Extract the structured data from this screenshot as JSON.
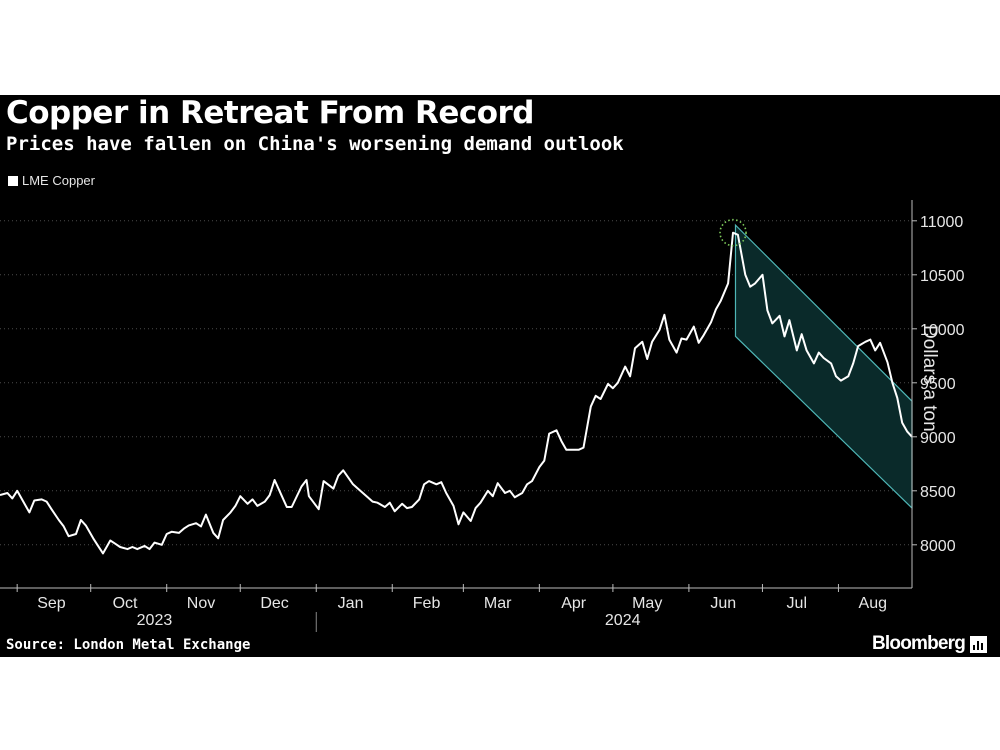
{
  "header": {
    "title": "Copper in Retreat From Record",
    "subtitle": "Prices have fallen on China's worsening demand outlook"
  },
  "legend": {
    "label": "LME Copper"
  },
  "footer": {
    "source": "Source: London Metal Exchange",
    "brand": "Bloomberg"
  },
  "colors": {
    "background": "#000000",
    "line": "#ffffff",
    "channel_fill": "#0a2a2a",
    "channel_border": "#4fb6b6",
    "peak_marker": "#7ecb5b"
  },
  "chart_data": {
    "type": "line",
    "title": "Copper in Retreat From Record",
    "subtitle": "Prices have fallen on China's worsening demand outlook",
    "ylabel": "Dollars a ton",
    "ylim": [
      7600,
      11100
    ],
    "yticks": [
      8000,
      8500,
      9000,
      9500,
      10000,
      10500,
      11000
    ],
    "xlim": [
      "2023-08-25",
      "2024-08-31"
    ],
    "month_ticks": [
      {
        "label": "Sep",
        "date": "2023-09-15"
      },
      {
        "label": "Oct",
        "date": "2023-10-15"
      },
      {
        "label": "Nov",
        "date": "2023-11-15"
      },
      {
        "label": "Dec",
        "date": "2023-12-15"
      },
      {
        "label": "Jan",
        "date": "2024-01-15"
      },
      {
        "label": "Feb",
        "date": "2024-02-15"
      },
      {
        "label": "Mar",
        "date": "2024-03-15"
      },
      {
        "label": "Apr",
        "date": "2024-04-15"
      },
      {
        "label": "May",
        "date": "2024-05-15"
      },
      {
        "label": "Jun",
        "date": "2024-06-15"
      },
      {
        "label": "Jul",
        "date": "2024-07-15"
      },
      {
        "label": "Aug",
        "date": "2024-08-15"
      }
    ],
    "month_boundaries": [
      "2023-09-01",
      "2023-10-01",
      "2023-11-01",
      "2023-12-01",
      "2024-01-01",
      "2024-02-01",
      "2024-03-01",
      "2024-04-01",
      "2024-05-01",
      "2024-06-01",
      "2024-07-01",
      "2024-08-01",
      "2024-09-01"
    ],
    "year_labels": [
      {
        "label": "2023",
        "date": "2023-10-27"
      },
      {
        "label": "2024",
        "date": "2024-05-05"
      }
    ],
    "year_divider": "2024-01-01",
    "grid": true,
    "legend_position": "top-left",
    "series": [
      {
        "name": "LME Copper",
        "points": [
          [
            "2023-08-25",
            8460
          ],
          [
            "2023-08-28",
            8480
          ],
          [
            "2023-08-30",
            8430
          ],
          [
            "2023-09-01",
            8500
          ],
          [
            "2023-09-04",
            8380
          ],
          [
            "2023-09-06",
            8300
          ],
          [
            "2023-09-08",
            8410
          ],
          [
            "2023-09-11",
            8420
          ],
          [
            "2023-09-13",
            8400
          ],
          [
            "2023-09-15",
            8330
          ],
          [
            "2023-09-18",
            8230
          ],
          [
            "2023-09-20",
            8170
          ],
          [
            "2023-09-22",
            8080
          ],
          [
            "2023-09-25",
            8100
          ],
          [
            "2023-09-27",
            8230
          ],
          [
            "2023-09-29",
            8180
          ],
          [
            "2023-10-02",
            8060
          ],
          [
            "2023-10-04",
            7990
          ],
          [
            "2023-10-06",
            7920
          ],
          [
            "2023-10-09",
            8040
          ],
          [
            "2023-10-11",
            8010
          ],
          [
            "2023-10-13",
            7980
          ],
          [
            "2023-10-16",
            7960
          ],
          [
            "2023-10-18",
            7980
          ],
          [
            "2023-10-20",
            7960
          ],
          [
            "2023-10-23",
            7990
          ],
          [
            "2023-10-25",
            7960
          ],
          [
            "2023-10-27",
            8020
          ],
          [
            "2023-10-30",
            8000
          ],
          [
            "2023-11-01",
            8100
          ],
          [
            "2023-11-03",
            8120
          ],
          [
            "2023-11-06",
            8110
          ],
          [
            "2023-11-08",
            8150
          ],
          [
            "2023-11-10",
            8180
          ],
          [
            "2023-11-13",
            8200
          ],
          [
            "2023-11-15",
            8170
          ],
          [
            "2023-11-17",
            8280
          ],
          [
            "2023-11-20",
            8110
          ],
          [
            "2023-11-22",
            8060
          ],
          [
            "2023-11-24",
            8230
          ],
          [
            "2023-11-27",
            8300
          ],
          [
            "2023-11-29",
            8360
          ],
          [
            "2023-12-01",
            8450
          ],
          [
            "2023-12-04",
            8380
          ],
          [
            "2023-12-06",
            8420
          ],
          [
            "2023-12-08",
            8360
          ],
          [
            "2023-12-11",
            8400
          ],
          [
            "2023-12-13",
            8460
          ],
          [
            "2023-12-15",
            8600
          ],
          [
            "2023-12-18",
            8450
          ],
          [
            "2023-12-20",
            8350
          ],
          [
            "2023-12-22",
            8350
          ],
          [
            "2023-12-26",
            8540
          ],
          [
            "2023-12-28",
            8600
          ],
          [
            "2023-12-29",
            8450
          ],
          [
            "2024-01-02",
            8330
          ],
          [
            "2024-01-04",
            8590
          ],
          [
            "2024-01-08",
            8520
          ],
          [
            "2024-01-10",
            8640
          ],
          [
            "2024-01-12",
            8690
          ],
          [
            "2024-01-16",
            8560
          ],
          [
            "2024-01-18",
            8520
          ],
          [
            "2024-01-22",
            8440
          ],
          [
            "2024-01-24",
            8400
          ],
          [
            "2024-01-26",
            8390
          ],
          [
            "2024-01-29",
            8350
          ],
          [
            "2024-01-31",
            8390
          ],
          [
            "2024-02-02",
            8310
          ],
          [
            "2024-02-05",
            8380
          ],
          [
            "2024-02-07",
            8340
          ],
          [
            "2024-02-09",
            8350
          ],
          [
            "2024-02-12",
            8420
          ],
          [
            "2024-02-14",
            8560
          ],
          [
            "2024-02-16",
            8590
          ],
          [
            "2024-02-19",
            8560
          ],
          [
            "2024-02-21",
            8580
          ],
          [
            "2024-02-23",
            8480
          ],
          [
            "2024-02-26",
            8360
          ],
          [
            "2024-02-28",
            8190
          ],
          [
            "2024-03-01",
            8300
          ],
          [
            "2024-03-04",
            8220
          ],
          [
            "2024-03-06",
            8340
          ],
          [
            "2024-03-08",
            8390
          ],
          [
            "2024-03-11",
            8500
          ],
          [
            "2024-03-13",
            8450
          ],
          [
            "2024-03-15",
            8570
          ],
          [
            "2024-03-18",
            8480
          ],
          [
            "2024-03-20",
            8500
          ],
          [
            "2024-03-22",
            8440
          ],
          [
            "2024-03-25",
            8480
          ],
          [
            "2024-03-27",
            8560
          ],
          [
            "2024-03-29",
            8590
          ],
          [
            "2024-04-01",
            8720
          ],
          [
            "2024-04-03",
            8780
          ],
          [
            "2024-04-05",
            9030
          ],
          [
            "2024-04-08",
            9060
          ],
          [
            "2024-04-10",
            8960
          ],
          [
            "2024-04-12",
            8880
          ],
          [
            "2024-04-15",
            8880
          ],
          [
            "2024-04-17",
            8880
          ],
          [
            "2024-04-19",
            8900
          ],
          [
            "2024-04-22",
            9280
          ],
          [
            "2024-04-24",
            9380
          ],
          [
            "2024-04-26",
            9350
          ],
          [
            "2024-04-29",
            9490
          ],
          [
            "2024-05-01",
            9450
          ],
          [
            "2024-05-03",
            9500
          ],
          [
            "2024-05-06",
            9650
          ],
          [
            "2024-05-08",
            9560
          ],
          [
            "2024-05-10",
            9820
          ],
          [
            "2024-05-13",
            9880
          ],
          [
            "2024-05-15",
            9720
          ],
          [
            "2024-05-17",
            9880
          ],
          [
            "2024-05-20",
            9990
          ],
          [
            "2024-05-22",
            10130
          ],
          [
            "2024-05-24",
            9900
          ],
          [
            "2024-05-27",
            9780
          ],
          [
            "2024-05-29",
            9910
          ],
          [
            "2024-05-31",
            9900
          ],
          [
            "2024-06-03",
            10020
          ],
          [
            "2024-06-05",
            9870
          ],
          [
            "2024-06-07",
            9940
          ],
          [
            "2024-06-10",
            10060
          ],
          [
            "2024-06-12",
            10180
          ],
          [
            "2024-06-14",
            10260
          ],
          [
            "2024-06-17",
            10420
          ],
          [
            "2024-06-19",
            10890
          ],
          [
            "2024-06-21",
            10870
          ],
          [
            "2024-06-24",
            10500
          ],
          [
            "2024-06-26",
            10390
          ],
          [
            "2024-06-28",
            10420
          ],
          [
            "2024-07-01",
            10500
          ],
          [
            "2024-07-03",
            10170
          ],
          [
            "2024-07-05",
            10050
          ],
          [
            "2024-07-08",
            10120
          ],
          [
            "2024-07-10",
            9930
          ],
          [
            "2024-07-12",
            10080
          ],
          [
            "2024-07-15",
            9800
          ],
          [
            "2024-07-17",
            9950
          ],
          [
            "2024-07-19",
            9800
          ],
          [
            "2024-07-22",
            9680
          ],
          [
            "2024-07-24",
            9780
          ],
          [
            "2024-07-26",
            9730
          ],
          [
            "2024-07-29",
            9680
          ],
          [
            "2024-07-31",
            9560
          ],
          [
            "2024-08-02",
            9520
          ],
          [
            "2024-08-05",
            9560
          ],
          [
            "2024-08-07",
            9680
          ],
          [
            "2024-08-09",
            9840
          ],
          [
            "2024-08-12",
            9880
          ],
          [
            "2024-08-14",
            9900
          ],
          [
            "2024-08-16",
            9800
          ],
          [
            "2024-08-18",
            9870
          ],
          [
            "2024-08-21",
            9690
          ],
          [
            "2024-08-23",
            9500
          ],
          [
            "2024-08-25",
            9360
          ],
          [
            "2024-08-27",
            9130
          ],
          [
            "2024-08-29",
            9050
          ],
          [
            "2024-08-31",
            9000
          ]
        ]
      }
    ]
  }
}
